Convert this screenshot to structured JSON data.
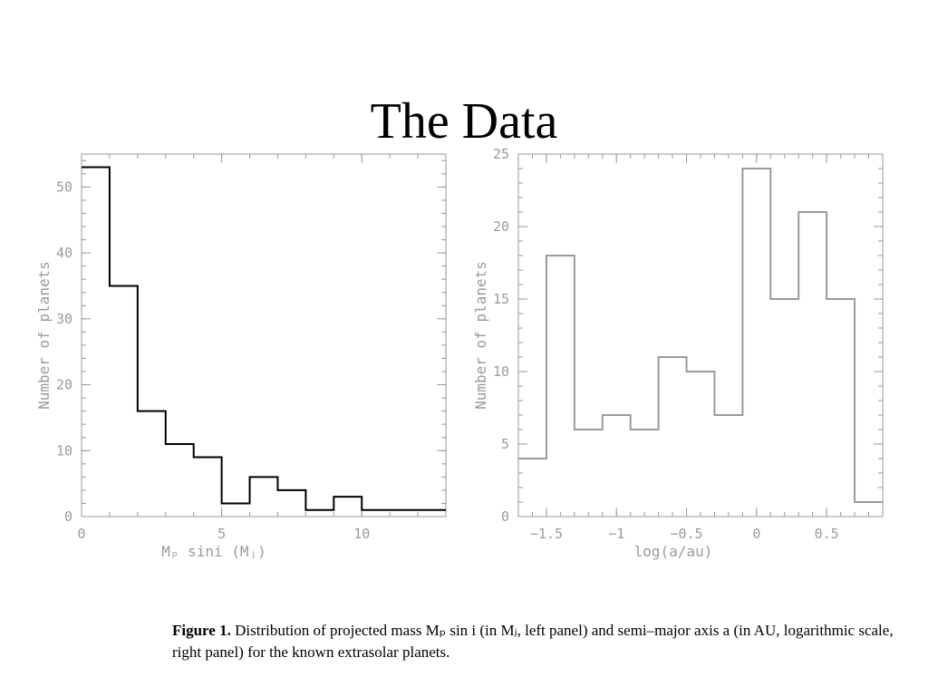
{
  "slide": {
    "title": "The Data"
  },
  "caption": {
    "figure_label": "Figure 1.",
    "text": "Distribution of projected mass Mₚ sin i (in Mⱼ, left panel) and semi–major axis a (in AU, logarithmic scale, right panel) for the known extrasolar planets."
  },
  "colors": {
    "frame": "#9a9a9a",
    "left_series": "#000000",
    "right_series": "#9a9a9a",
    "text": "#9a9a9a"
  },
  "chart_data": [
    {
      "type": "histogram",
      "panel": "left",
      "xlabel": "Mₚ sini (Mⱼ)",
      "ylabel": "Number of planets",
      "xlim": [
        0,
        13
      ],
      "ylim": [
        0,
        55
      ],
      "xticks": [
        0,
        5,
        10
      ],
      "yticks": [
        0,
        10,
        20,
        30,
        40,
        50
      ],
      "bin_edges": [
        0,
        1,
        2,
        3,
        4,
        5,
        6,
        7,
        8,
        9,
        10,
        11,
        12,
        13
      ],
      "values": [
        53,
        35,
        16,
        11,
        9,
        2,
        6,
        4,
        1,
        3,
        1,
        1,
        1
      ],
      "grid": false
    },
    {
      "type": "histogram",
      "panel": "right",
      "xlabel": "log(a/au)",
      "ylabel": "Number of planets",
      "xlim": [
        -1.7,
        0.9
      ],
      "ylim": [
        0,
        25
      ],
      "xticks": [
        -1.5,
        -1,
        -0.5,
        0,
        0.5
      ],
      "xtick_labels": [
        "−1.5",
        "−1",
        "−0.5",
        "0",
        "0.5"
      ],
      "yticks": [
        0,
        5,
        10,
        15,
        20,
        25
      ],
      "bin_edges": [
        -1.7,
        -1.5,
        -1.3,
        -1.1,
        -0.9,
        -0.7,
        -0.5,
        -0.3,
        -0.1,
        0.1,
        0.3,
        0.5,
        0.7,
        0.9
      ],
      "values": [
        4,
        18,
        6,
        7,
        6,
        11,
        10,
        7,
        24,
        15,
        21,
        15,
        1
      ],
      "grid": false
    }
  ]
}
